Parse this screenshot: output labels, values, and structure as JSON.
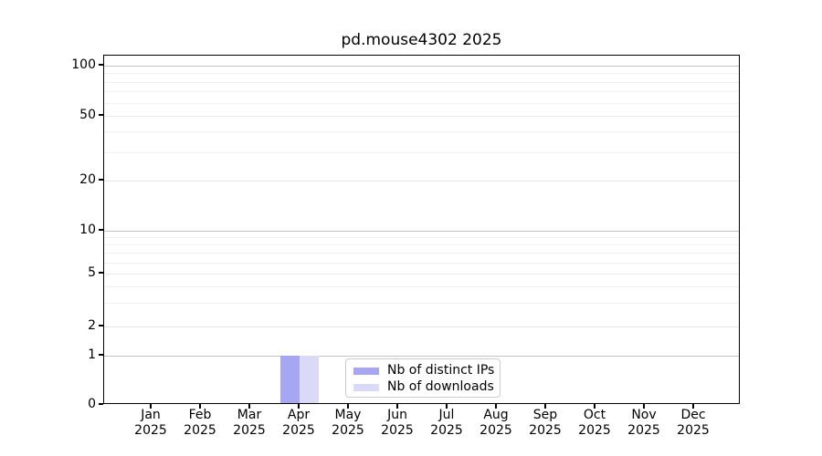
{
  "figure": {
    "title": "pd.mouse4302 2025"
  },
  "chart_data": {
    "type": "bar",
    "title": "pd.mouse4302 2025",
    "xlabel": "",
    "ylabel": "",
    "categories": [
      "Jan",
      "Feb",
      "Mar",
      "Apr",
      "May",
      "Jun",
      "Jul",
      "Aug",
      "Sep",
      "Oct",
      "Nov",
      "Dec"
    ],
    "category_year": "2025",
    "series": [
      {
        "name": "Nb of distinct IPs",
        "color": "#a6a6f2",
        "values": [
          0,
          0,
          0,
          1,
          0,
          0,
          0,
          0,
          0,
          0,
          0,
          0
        ]
      },
      {
        "name": "Nb of downloads",
        "color": "#dadaf8",
        "values": [
          0,
          0,
          0,
          1,
          0,
          0,
          0,
          0,
          0,
          0,
          0,
          0
        ]
      }
    ],
    "yticks": [
      0,
      1,
      2,
      5,
      10,
      20,
      50,
      100
    ],
    "mid_yticks": [
      2,
      5,
      20,
      50
    ],
    "minor_yticks": [
      3,
      4,
      6,
      7,
      8,
      9,
      30,
      40,
      60,
      70,
      80,
      90
    ],
    "ylim": [
      0,
      115
    ],
    "yscale": "symlog",
    "grid": true,
    "legend_position": "lower center"
  }
}
